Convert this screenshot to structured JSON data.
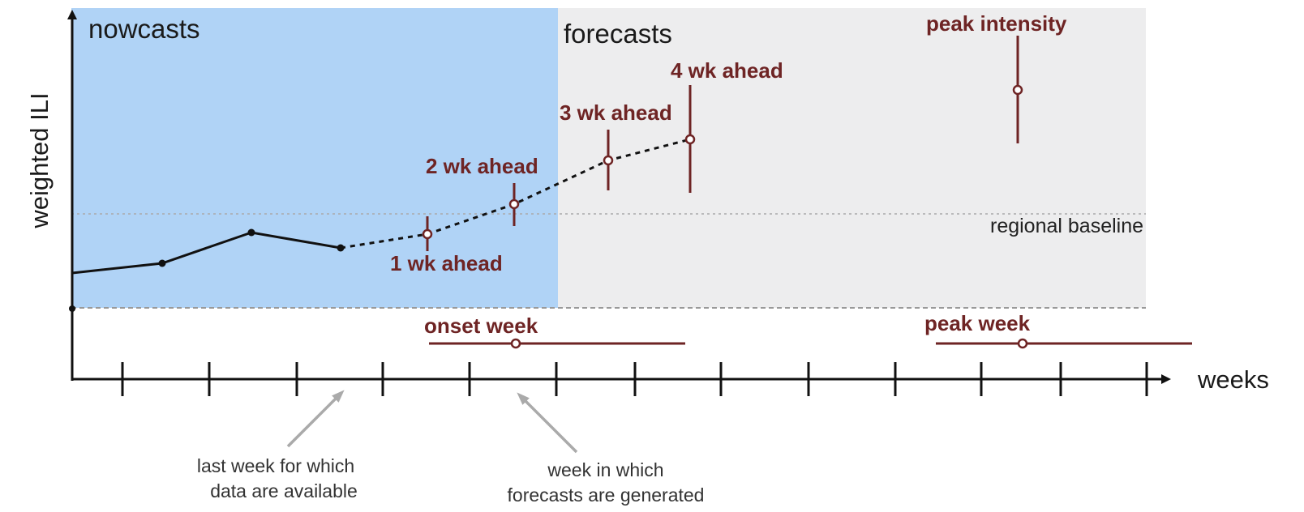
{
  "colors": {
    "nowcast_region": "#b0d3f6",
    "forecast_region": "#ededee",
    "target": "#6e2424",
    "observed": "#111111",
    "baseline": "#aaaaaa",
    "arrow": "#aaaaaa"
  },
  "regions": {
    "nowcasts": "nowcasts",
    "forecasts": "forecasts"
  },
  "axes": {
    "ylabel": "weighted ILI",
    "xlabel": "weeks"
  },
  "baseline_label": "regional baseline",
  "targets": {
    "wk1": "1 wk ahead",
    "wk2": "2 wk ahead",
    "wk3": "3 wk ahead",
    "wk4": "4 wk ahead",
    "peak_intensity": "peak intensity",
    "onset_week": "onset week",
    "peak_week": "peak week"
  },
  "annotations": {
    "last_week_line1": "last week for which",
    "last_week_line2": "data are available",
    "forecast_week_line1": "week in which",
    "forecast_week_line2": "forecasts are generated"
  }
}
